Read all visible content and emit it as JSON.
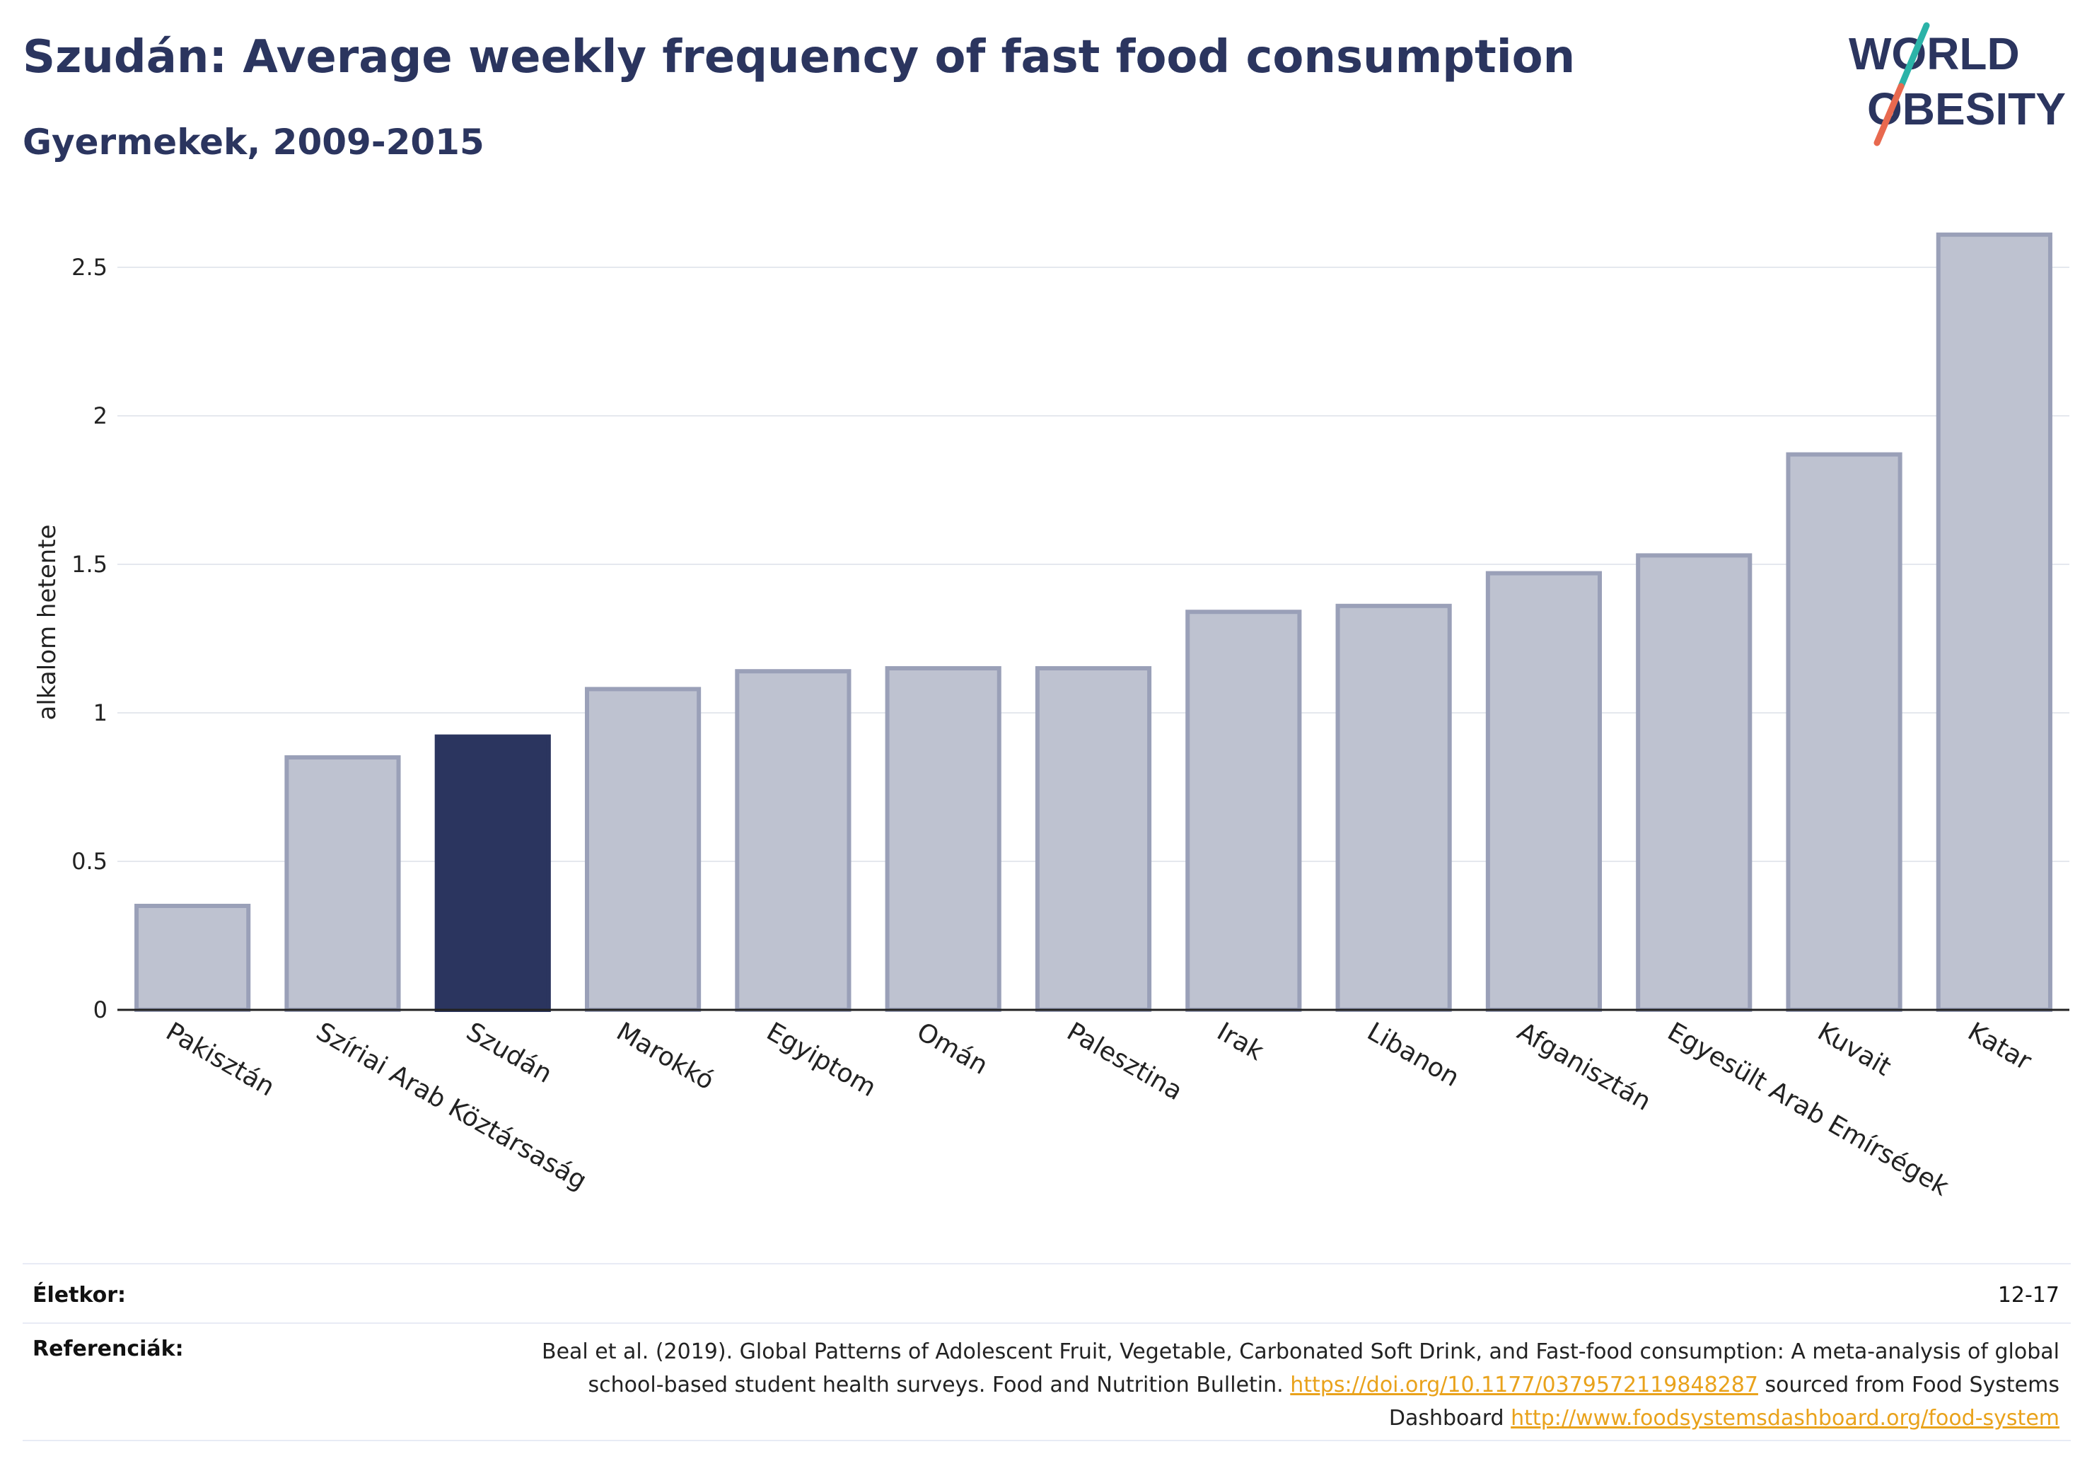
{
  "header": {
    "title": "Szudán: Average weekly frequency of fast food consumption",
    "subtitle": "Gyermekek, 2009-2015"
  },
  "logo": {
    "line1": "WORLD",
    "line2": "OBESITY",
    "colors": {
      "text": "#2b355f",
      "slash_top": "#2bb3a8",
      "slash_bottom": "#e8694f"
    }
  },
  "colors": {
    "highlight": "#2b355f",
    "bar_fill": "#bec2d0",
    "bar_stroke": "#9aa0b8",
    "grid": "#e5e8ee",
    "axis": "#222222",
    "link": "#e9a21b"
  },
  "chart_data": {
    "type": "bar",
    "title": "Szudán: Average weekly frequency of fast food consumption",
    "subtitle": "Gyermekek, 2009-2015",
    "xlabel": "",
    "ylabel": "alkalom hetente",
    "ylim": [
      0,
      2.7
    ],
    "yticks": [
      0,
      0.5,
      1,
      1.5,
      2,
      2.5
    ],
    "ytick_labels": [
      "0",
      "0.5",
      "1",
      "1.5",
      "2",
      "2.5"
    ],
    "grid": true,
    "highlight": "Szudán",
    "categories": [
      "Pakisztán",
      "Szíriai Arab Köztársaság",
      "Szudán",
      "Marokkó",
      "Egyiptom",
      "Omán",
      "Palesztina",
      "Irak",
      "Libanon",
      "Afganisztán",
      "Egyesült Arab Emírségek",
      "Kuvait",
      "Katar"
    ],
    "values": [
      0.35,
      0.85,
      0.92,
      1.08,
      1.14,
      1.15,
      1.15,
      1.34,
      1.36,
      1.47,
      1.53,
      1.87,
      2.61
    ]
  },
  "footer": {
    "age_label": "Életkor:",
    "age_value": "12-17",
    "ref_label": "Referenciák:",
    "ref_text_1": "Beal et al. (2019). Global Patterns of Adolescent Fruit, Vegetable, Carbonated Soft Drink, and Fast-food consumption: A meta-analysis of global school-based student health surveys. Food and Nutrition Bulletin.",
    "ref_link_1": "https://doi.org/10.1177/0379572119848287",
    "ref_text_2": "sourced from Food Systems Dashboard",
    "ref_link_2": "http://www.foodsystemsdashboard.org/food-system"
  }
}
